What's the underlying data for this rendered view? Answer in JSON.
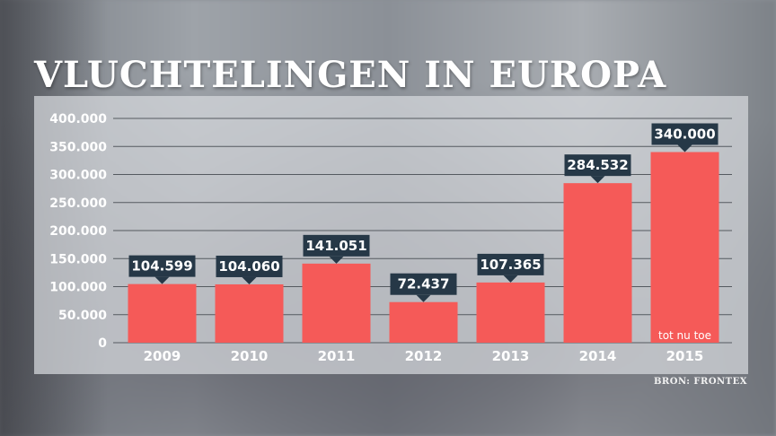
{
  "chart_data": {
    "type": "bar",
    "title": "VLUCHTELINGEN IN EUROPA",
    "categories": [
      "2009",
      "2010",
      "2011",
      "2012",
      "2013",
      "2014",
      "2015"
    ],
    "values": [
      104599,
      104060,
      141051,
      72437,
      107365,
      284532,
      340000
    ],
    "value_labels": [
      "104.599",
      "104.060",
      "141.051",
      "72.437",
      "107.365",
      "284.532",
      "340.000"
    ],
    "ylim": [
      0,
      400000
    ],
    "yticks": [
      0,
      50000,
      100000,
      150000,
      200000,
      250000,
      300000,
      350000,
      400000
    ],
    "ytick_labels": [
      "0",
      "50.000",
      "100.000",
      "150.000",
      "200.000",
      "250.000",
      "300.000",
      "350.000",
      "400.000"
    ],
    "annotation": "tot nu toe",
    "annotation_category": "2015",
    "source": "BRON: FRONTEX",
    "grid": true,
    "xlabel": "",
    "ylabel": ""
  },
  "colors": {
    "bar": "#f55a58",
    "label_box": "#263847",
    "grid": "#555a60"
  }
}
